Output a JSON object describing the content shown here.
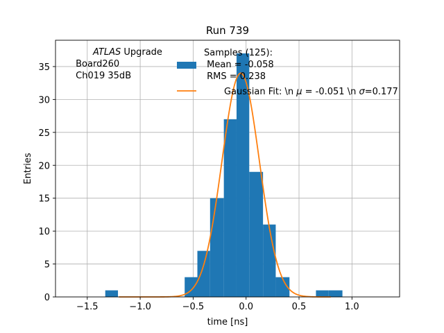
{
  "chart_data": {
    "type": "bar",
    "title": "Run 739",
    "xlabel": "time [ns]",
    "ylabel": "Entries",
    "xlim": [
      -1.8,
      1.45
    ],
    "ylim": [
      0,
      39
    ],
    "x_ticks": [
      -1.5,
      -1.0,
      -0.5,
      0.0,
      0.5,
      1.0
    ],
    "x_tick_labels": [
      "−1.5",
      "−1.0",
      "−0.5",
      "0.0",
      "0.5",
      "1.0"
    ],
    "y_ticks": [
      0,
      5,
      10,
      15,
      20,
      25,
      30,
      35
    ],
    "y_tick_labels": [
      "0",
      "5",
      "10",
      "15",
      "20",
      "25",
      "30",
      "35"
    ],
    "grid": true,
    "histogram": {
      "bar_color": "#1f77b4",
      "bins": [
        {
          "x0": -1.33,
          "x1": -1.21,
          "count": 1
        },
        {
          "x0": -0.58,
          "x1": -0.46,
          "count": 3
        },
        {
          "x0": -0.46,
          "x1": -0.34,
          "count": 7
        },
        {
          "x0": -0.34,
          "x1": -0.21,
          "count": 15
        },
        {
          "x0": -0.21,
          "x1": -0.09,
          "count": 27
        },
        {
          "x0": -0.09,
          "x1": 0.03,
          "count": 37
        },
        {
          "x0": 0.03,
          "x1": 0.16,
          "count": 19
        },
        {
          "x0": 0.16,
          "x1": 0.28,
          "count": 11
        },
        {
          "x0": 0.28,
          "x1": 0.41,
          "count": 3
        },
        {
          "x0": 0.66,
          "x1": 0.78,
          "count": 1
        },
        {
          "x0": 0.78,
          "x1": 0.91,
          "count": 1
        }
      ]
    },
    "gaussian_fit": {
      "color": "#ff7f0e",
      "mu": -0.051,
      "sigma": 0.177,
      "amplitude": 34.0,
      "x_range": [
        -1.2,
        0.8
      ]
    },
    "annotation": {
      "italic_part": "ATLAS",
      "line1_rest": " Upgrade",
      "line2": " Board260",
      "line3": " Ch019 35dB"
    },
    "legend": {
      "placement": "top-center",
      "hist_label_line1": "Samples (125):",
      "hist_label_line2": " Mean = -0.058",
      "hist_label_line3": " RMS = 0.238",
      "fit_label_prefix": "Gaussian Fit: \\n ",
      "fit_label_mu_symbol": "μ",
      "fit_label_mid": " = -0.051 \\n ",
      "fit_label_sigma_symbol": "σ",
      "fit_label_suffix": "=0.177"
    }
  }
}
